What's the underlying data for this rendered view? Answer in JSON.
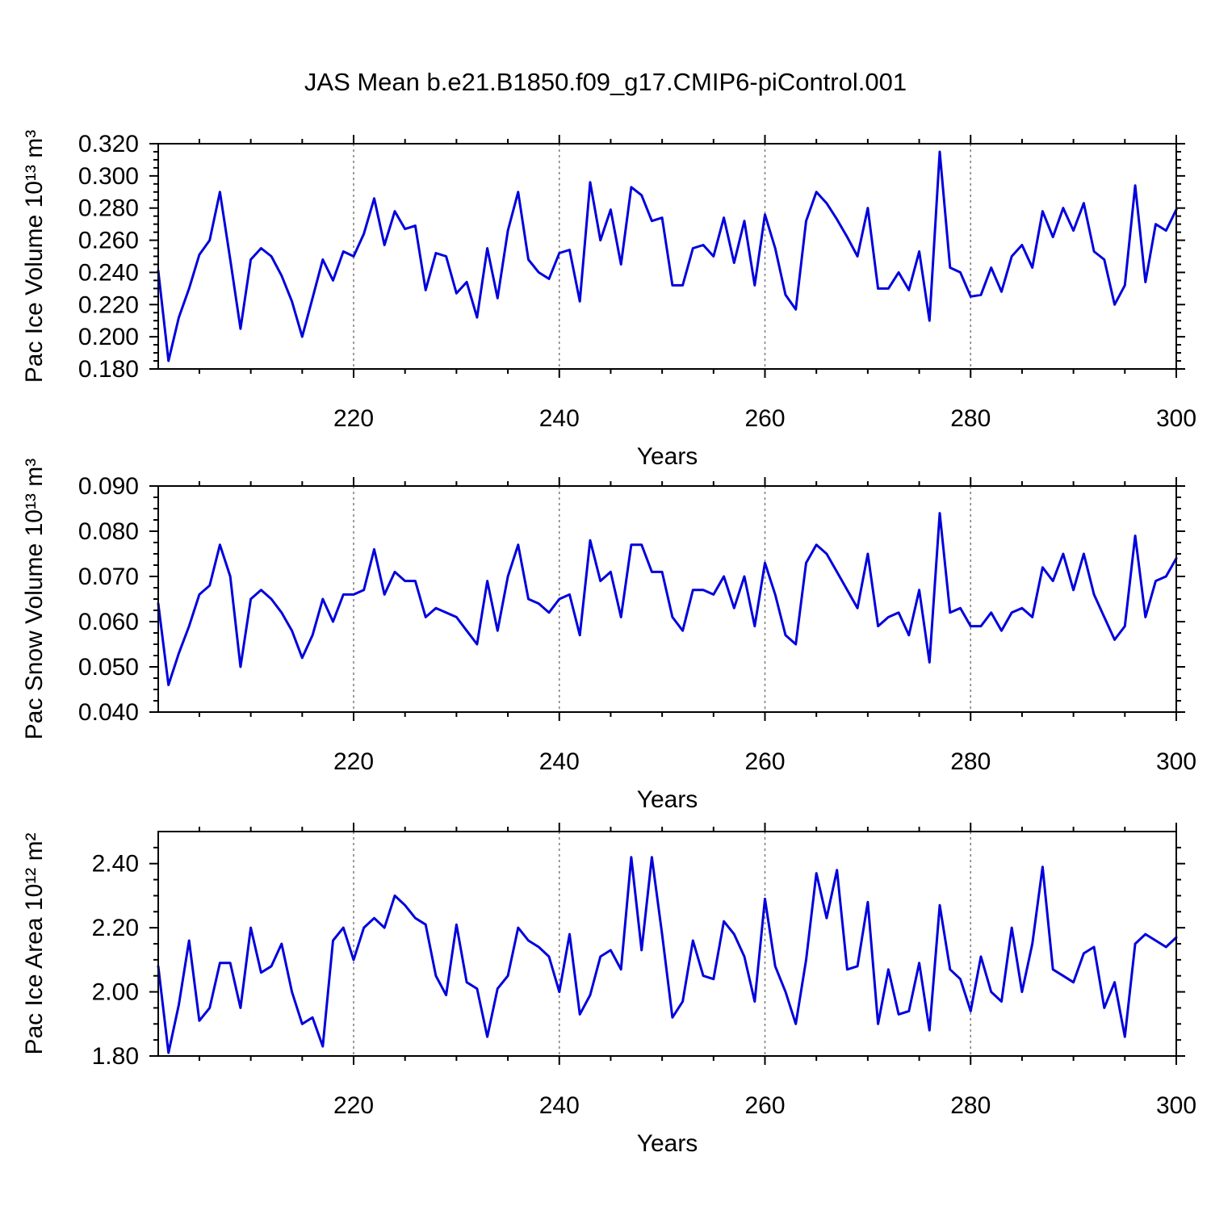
{
  "title": "JAS Mean b.e21.B1850.f09_g17.CMIP6-piControl.001",
  "style": {
    "line_color": "#0000dd",
    "grid_color": "#7d7d7d",
    "axis_color": "#000000",
    "text_color": "#000000",
    "background": "#ffffff"
  },
  "xlabel": "Years",
  "x_years": [
    201,
    202,
    203,
    204,
    205,
    206,
    207,
    208,
    209,
    210,
    211,
    212,
    213,
    214,
    215,
    216,
    217,
    218,
    219,
    220,
    221,
    222,
    223,
    224,
    225,
    226,
    227,
    228,
    229,
    230,
    231,
    232,
    233,
    234,
    235,
    236,
    237,
    238,
    239,
    240,
    241,
    242,
    243,
    244,
    245,
    246,
    247,
    248,
    249,
    250,
    251,
    252,
    253,
    254,
    255,
    256,
    257,
    258,
    259,
    260,
    261,
    262,
    263,
    264,
    265,
    266,
    267,
    268,
    269,
    270,
    271,
    272,
    273,
    274,
    275,
    276,
    277,
    278,
    279,
    280,
    281,
    282,
    283,
    284,
    285,
    286,
    287,
    288,
    289,
    290,
    291,
    292,
    293,
    294,
    295,
    296,
    297,
    298,
    299,
    300
  ],
  "xticks_major": [
    220,
    240,
    260,
    280,
    300
  ],
  "xtick_labels": [
    "220",
    "240",
    "260",
    "280",
    "300"
  ],
  "xtick_minor_step": 5,
  "grid_years": [
    220,
    240,
    260,
    280
  ],
  "chart_data": [
    {
      "id": "pac-ice-volume",
      "type": "line",
      "ylabel": "Pac Ice Volume 10¹³ m³",
      "xlabel": "Years",
      "ylim": [
        0.18,
        0.32
      ],
      "yticks_major": [
        0.18,
        0.2,
        0.22,
        0.24,
        0.26,
        0.28,
        0.3,
        0.32
      ],
      "ytick_labels": [
        "0.180",
        "0.200",
        "0.220",
        "0.240",
        "0.260",
        "0.280",
        "0.300",
        "0.320"
      ],
      "ytick_minor_step": 0.005,
      "values": [
        0.241,
        0.185,
        0.212,
        0.23,
        0.251,
        0.26,
        0.29,
        0.248,
        0.205,
        0.248,
        0.255,
        0.25,
        0.238,
        0.222,
        0.2,
        0.224,
        0.248,
        0.235,
        0.253,
        0.25,
        0.264,
        0.286,
        0.257,
        0.278,
        0.267,
        0.269,
        0.229,
        0.252,
        0.25,
        0.227,
        0.234,
        0.212,
        0.255,
        0.224,
        0.266,
        0.29,
        0.248,
        0.24,
        0.236,
        0.252,
        0.254,
        0.222,
        0.296,
        0.26,
        0.279,
        0.245,
        0.293,
        0.288,
        0.272,
        0.274,
        0.232,
        0.232,
        0.255,
        0.257,
        0.25,
        0.274,
        0.246,
        0.272,
        0.232,
        0.276,
        0.255,
        0.226,
        0.217,
        0.272,
        0.29,
        0.283,
        0.273,
        0.262,
        0.25,
        0.28,
        0.23,
        0.23,
        0.24,
        0.229,
        0.253,
        0.21,
        0.315,
        0.243,
        0.24,
        0.225,
        0.226,
        0.243,
        0.228,
        0.25,
        0.257,
        0.243,
        0.278,
        0.262,
        0.28,
        0.266,
        0.283,
        0.253,
        0.248,
        0.22,
        0.232,
        0.294,
        0.234,
        0.27,
        0.266,
        0.279
      ]
    },
    {
      "id": "pac-snow-volume",
      "type": "line",
      "ylabel": "Pac Snow Volume 10¹³ m³",
      "xlabel": "Years",
      "ylim": [
        0.04,
        0.09
      ],
      "yticks_major": [
        0.04,
        0.05,
        0.06,
        0.07,
        0.08,
        0.09
      ],
      "ytick_labels": [
        "0.040",
        "0.050",
        "0.060",
        "0.070",
        "0.080",
        "0.090"
      ],
      "ytick_minor_step": 0.0025,
      "values": [
        0.064,
        0.046,
        0.053,
        0.059,
        0.066,
        0.068,
        0.077,
        0.07,
        0.05,
        0.065,
        0.067,
        0.065,
        0.062,
        0.058,
        0.052,
        0.057,
        0.065,
        0.06,
        0.066,
        0.066,
        0.067,
        0.076,
        0.066,
        0.071,
        0.069,
        0.069,
        0.061,
        0.063,
        0.062,
        0.061,
        0.058,
        0.055,
        0.069,
        0.058,
        0.07,
        0.077,
        0.065,
        0.064,
        0.062,
        0.065,
        0.066,
        0.057,
        0.078,
        0.069,
        0.071,
        0.061,
        0.077,
        0.077,
        0.071,
        0.071,
        0.061,
        0.058,
        0.067,
        0.067,
        0.066,
        0.07,
        0.063,
        0.07,
        0.059,
        0.073,
        0.066,
        0.057,
        0.055,
        0.073,
        0.077,
        0.075,
        0.071,
        0.067,
        0.063,
        0.075,
        0.059,
        0.061,
        0.062,
        0.057,
        0.067,
        0.051,
        0.084,
        0.062,
        0.063,
        0.059,
        0.059,
        0.062,
        0.058,
        0.062,
        0.063,
        0.061,
        0.072,
        0.069,
        0.075,
        0.067,
        0.075,
        0.066,
        0.061,
        0.056,
        0.059,
        0.079,
        0.061,
        0.069,
        0.07,
        0.074
      ]
    },
    {
      "id": "pac-ice-area",
      "type": "line",
      "ylabel": "Pac Ice Area 10¹² m²",
      "xlabel": "Years",
      "ylim": [
        1.8,
        2.5
      ],
      "yticks_major": [
        1.8,
        2.0,
        2.2,
        2.4
      ],
      "ytick_labels": [
        "1.80",
        "2.00",
        "2.20",
        "2.40"
      ],
      "ytick_minor_step": 0.05,
      "values": [
        2.08,
        1.81,
        1.96,
        2.16,
        1.91,
        1.95,
        2.09,
        2.09,
        1.95,
        2.2,
        2.06,
        2.08,
        2.15,
        2.0,
        1.9,
        1.92,
        1.83,
        2.16,
        2.2,
        2.1,
        2.2,
        2.23,
        2.2,
        2.3,
        2.27,
        2.23,
        2.21,
        2.05,
        1.99,
        2.21,
        2.03,
        2.01,
        1.86,
        2.01,
        2.05,
        2.2,
        2.16,
        2.14,
        2.11,
        2.0,
        2.18,
        1.93,
        1.99,
        2.11,
        2.13,
        2.07,
        2.42,
        2.13,
        2.42,
        2.18,
        1.92,
        1.97,
        2.16,
        2.05,
        2.04,
        2.22,
        2.18,
        2.11,
        1.97,
        2.29,
        2.08,
        2.0,
        1.9,
        2.1,
        2.37,
        2.23,
        2.38,
        2.07,
        2.08,
        2.28,
        1.9,
        2.07,
        1.93,
        1.94,
        2.09,
        1.88,
        2.27,
        2.07,
        2.04,
        1.94,
        2.11,
        2.0,
        1.97,
        2.2,
        2.0,
        2.15,
        2.39,
        2.07,
        2.05,
        2.03,
        2.12,
        2.14,
        1.95,
        2.03,
        1.86,
        2.15,
        2.18,
        2.16,
        2.14,
        2.17
      ]
    }
  ]
}
